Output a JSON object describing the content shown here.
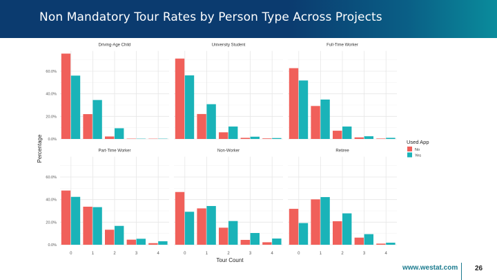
{
  "slide": {
    "title": "Non Mandatory Tour Rates by Person Type Across Projects",
    "footer_url": "www.westat.com",
    "page_number": "26",
    "header_colors": [
      "#0b3b6f",
      "#0a8c9c"
    ]
  },
  "chart_data": {
    "type": "bar",
    "xlabel": "Tour Count",
    "ylabel": "Percentage",
    "categories": [
      "0",
      "1",
      "2",
      "3",
      "4"
    ],
    "yticks": [
      "0.0%",
      "20.0%",
      "40.0%",
      "60.0%"
    ],
    "ytick_values": [
      0,
      20,
      40,
      60
    ],
    "ylim": [
      0,
      78
    ],
    "grid": true,
    "legend": {
      "title": "Used App",
      "position": "right",
      "entries": [
        "No",
        "Yes"
      ]
    },
    "colors": {
      "No": "#f0605a",
      "Yes": "#1ab3b8"
    },
    "panels": [
      {
        "title": "Driving-Age Child",
        "series": [
          {
            "name": "No",
            "values": [
              75.6,
              22.0,
              2.2,
              0.3,
              0.2
            ]
          },
          {
            "name": "Yes",
            "values": [
              56.1,
              34.5,
              9.5,
              0.2,
              0.1
            ]
          }
        ]
      },
      {
        "title": "University Student",
        "series": [
          {
            "name": "No",
            "values": [
              71.2,
              22.1,
              5.9,
              1.0,
              0.5
            ]
          },
          {
            "name": "Yes",
            "values": [
              56.3,
              30.8,
              11.0,
              2.0,
              0.8
            ]
          }
        ]
      },
      {
        "title": "Full-Time Worker",
        "series": [
          {
            "name": "No",
            "values": [
              62.7,
              29.2,
              7.3,
              1.4,
              0.4
            ]
          },
          {
            "name": "Yes",
            "values": [
              51.8,
              34.9,
              11.0,
              2.4,
              1.0
            ]
          }
        ]
      },
      {
        "title": "Part-Time Worker",
        "series": [
          {
            "name": "No",
            "values": [
              48.0,
              33.7,
              13.3,
              4.5,
              1.4
            ]
          },
          {
            "name": "Yes",
            "values": [
              42.4,
              33.3,
              16.7,
              5.3,
              3.1
            ]
          }
        ]
      },
      {
        "title": "Non-Worker",
        "series": [
          {
            "name": "No",
            "values": [
              46.7,
              32.2,
              15.1,
              4.3,
              2.2
            ]
          },
          {
            "name": "Yes",
            "values": [
              29.2,
              34.3,
              21.0,
              10.4,
              5.5
            ]
          }
        ]
      },
      {
        "title": "Retiree",
        "series": [
          {
            "name": "No",
            "values": [
              31.8,
              40.2,
              20.8,
              6.3,
              1.0
            ]
          },
          {
            "name": "Yes",
            "values": [
              19.2,
              42.2,
              27.8,
              9.4,
              1.8
            ]
          }
        ]
      }
    ]
  }
}
